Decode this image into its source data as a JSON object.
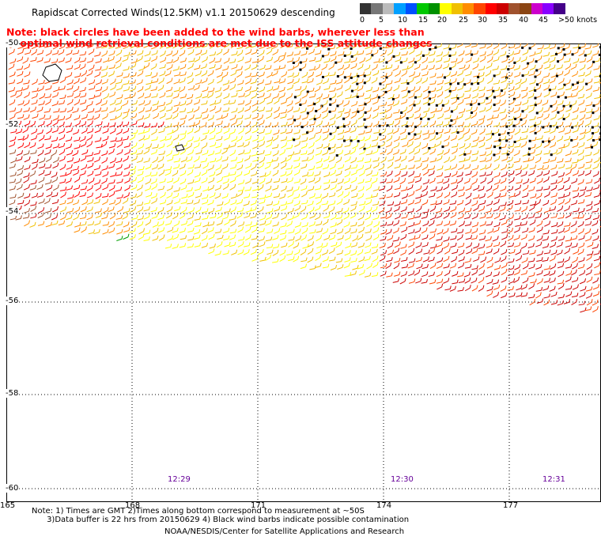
{
  "header": {
    "title": "Rapidscat Corrected Winds(12.5KM) v1.1 20150629 descending"
  },
  "red_note": {
    "line1": "Note: black circles have been added to the wind barbs, wherever less than",
    "line2": "optimal wind retrieval conditions are met due to the ISS attitude changes"
  },
  "legend": {
    "unit": "knots",
    "ticks": [
      "0",
      "5",
      "10",
      "15",
      "20",
      "25",
      "30",
      "35",
      "40",
      "45",
      ">50 knots"
    ],
    "colors": [
      "#333333",
      "#777777",
      "#bbbbbb",
      "#00a0ff",
      "#0050ff",
      "#00c800",
      "#009000",
      "#ffff00",
      "#f0c000",
      "#ff8c00",
      "#ff4500",
      "#ff0000",
      "#cc0000",
      "#a0522d",
      "#8b4513",
      "#cc00cc",
      "#8800ff",
      "#440088"
    ]
  },
  "map": {
    "lat_labels": [
      "-50",
      "-52",
      "-54",
      "-56",
      "-58",
      "-60"
    ],
    "lon_labels": [
      "165",
      "168",
      "171",
      "174",
      "177"
    ],
    "time_labels": [
      "12:29",
      "12:30",
      "12:31"
    ]
  },
  "footer": {
    "notes": "Note: 1) Times are GMT 2)Times along bottom correspond to measurement at ~50S\n      3)Data buffer is 22 hrs from 20150629 4) Black wind barbs indicate possible contamination",
    "credit": "NOAA/NESDIS/Center for Satellite Applications and Research"
  }
}
